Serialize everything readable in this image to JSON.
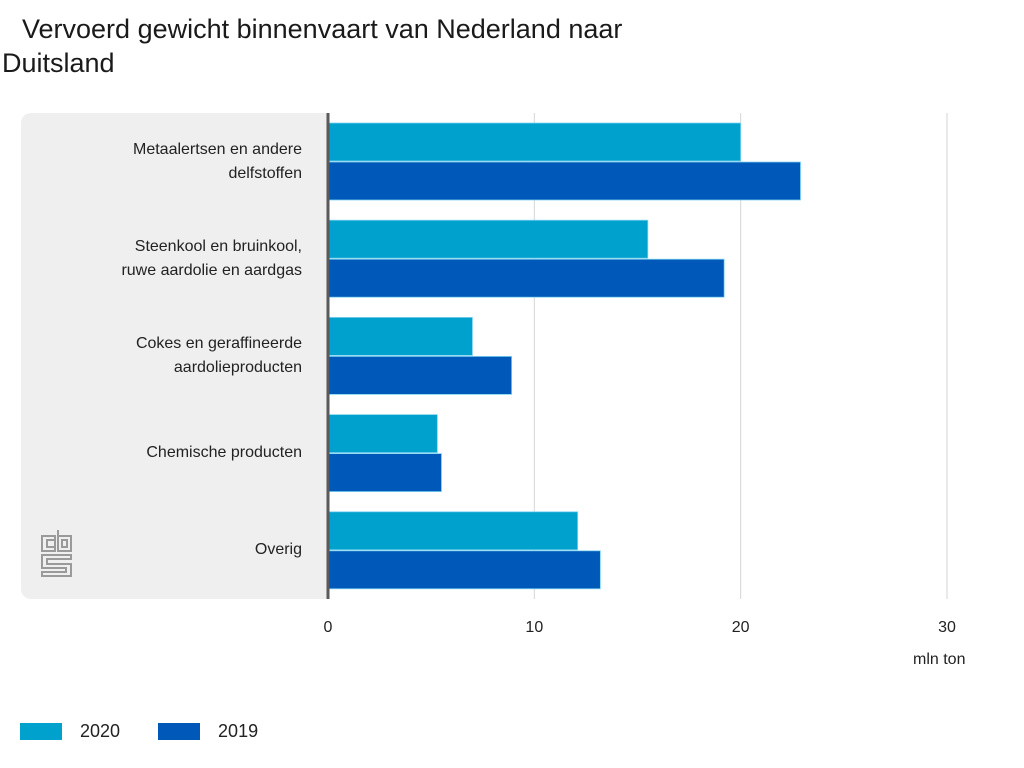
{
  "chart_data": {
    "type": "bar",
    "orientation": "horizontal",
    "title": "Vervoerd gewicht binnenvaart van Nederland naar Duitsland",
    "xlabel": "mln ton",
    "ylabel": "",
    "xlim": [
      0,
      30
    ],
    "xticks": [
      0,
      10,
      20,
      30
    ],
    "grid": true,
    "legend_position": "bottom-left",
    "categories": [
      "Metaalertsen en andere delfstoffen",
      "Steenkool en bruinkool, ruwe aardolie en aardgas",
      "Cokes en geraffineerde aardolieproducten",
      "Chemische producten",
      "Overig"
    ],
    "category_lines": [
      [
        "Metaalertsen en andere",
        "delfstoffen"
      ],
      [
        "Steenkool en bruinkool,",
        "ruwe aardolie en aardgas"
      ],
      [
        "Cokes en geraffineerde",
        "aardolieproducten"
      ],
      [
        "Chemische producten"
      ],
      [
        "Overig"
      ]
    ],
    "series": [
      {
        "name": "2020",
        "color": "#00a1cd",
        "values": [
          20.0,
          15.5,
          7.0,
          5.3,
          12.1
        ]
      },
      {
        "name": "2019",
        "color": "#0058b8",
        "values": [
          22.9,
          19.2,
          8.9,
          5.5,
          13.2
        ]
      }
    ]
  },
  "branding": {
    "logo": "cbs-logo-icon"
  }
}
